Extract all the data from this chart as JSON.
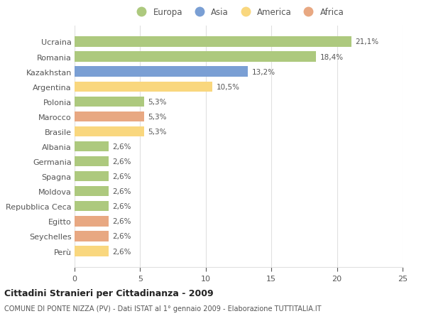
{
  "categories": [
    "Perù",
    "Seychelles",
    "Egitto",
    "Repubblica Ceca",
    "Moldova",
    "Spagna",
    "Germania",
    "Albania",
    "Brasile",
    "Marocco",
    "Polonia",
    "Argentina",
    "Kazakhstan",
    "Romania",
    "Ucraina"
  ],
  "values": [
    2.6,
    2.6,
    2.6,
    2.6,
    2.6,
    2.6,
    2.6,
    2.6,
    5.3,
    5.3,
    5.3,
    10.5,
    13.2,
    18.4,
    21.1
  ],
  "labels": [
    "2,6%",
    "2,6%",
    "2,6%",
    "2,6%",
    "2,6%",
    "2,6%",
    "2,6%",
    "2,6%",
    "5,3%",
    "5,3%",
    "5,3%",
    "10,5%",
    "13,2%",
    "18,4%",
    "21,1%"
  ],
  "colors": [
    "#f9d77e",
    "#e8a882",
    "#e8a882",
    "#adc97e",
    "#adc97e",
    "#adc97e",
    "#adc97e",
    "#adc97e",
    "#f9d77e",
    "#e8a882",
    "#adc97e",
    "#f9d77e",
    "#7a9fd4",
    "#adc97e",
    "#adc97e"
  ],
  "legend_labels": [
    "Europa",
    "Asia",
    "America",
    "Africa"
  ],
  "legend_colors": [
    "#adc97e",
    "#7a9fd4",
    "#f9d77e",
    "#e8a882"
  ],
  "title": "Cittadini Stranieri per Cittadinanza - 2009",
  "subtitle": "COMUNE DI PONTE NIZZA (PV) - Dati ISTAT al 1° gennaio 2009 - Elaborazione TUTTITALIA.IT",
  "xlim": [
    0,
    25
  ],
  "xticks": [
    0,
    5,
    10,
    15,
    20,
    25
  ],
  "background_color": "#ffffff",
  "grid_color": "#e0e0e0",
  "bar_height": 0.68,
  "label_color": "#555555",
  "ytick_color": "#555555"
}
